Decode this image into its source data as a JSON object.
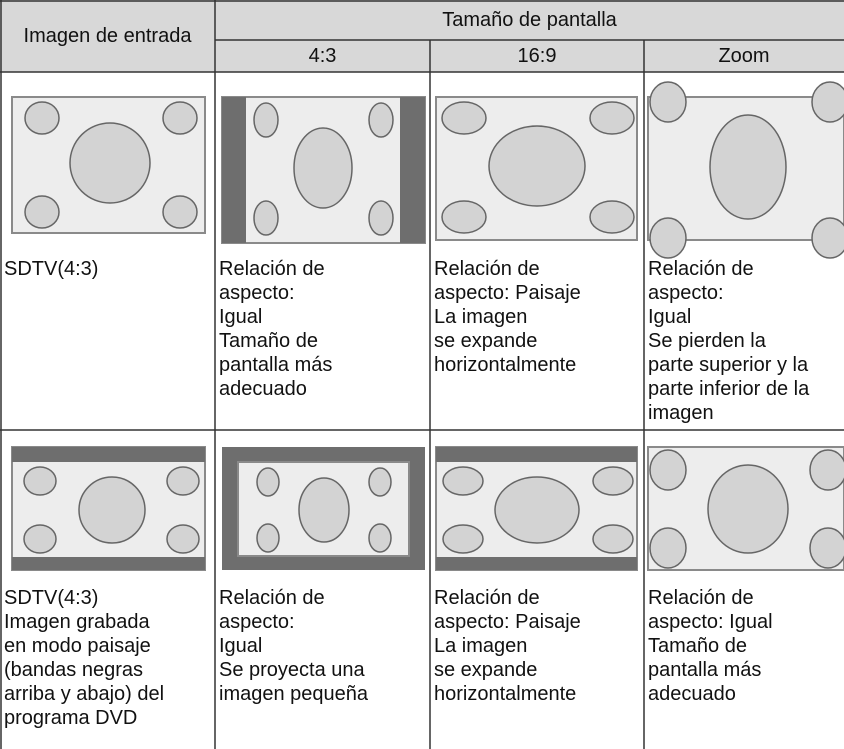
{
  "table": {
    "header": {
      "input": "Imagen de entrada",
      "screen_size": "Tamaño de pantalla",
      "columns": [
        "4:3",
        "16:9",
        "Zoom"
      ]
    },
    "rows": [
      {
        "input": [
          "SDTV(4:3)"
        ],
        "cells": [
          [
            "Relación de",
            "aspecto:",
            "Igual",
            "Tamaño de",
            "pantalla más",
            "adecuado"
          ],
          [
            "Relación de",
            "aspecto: Paisaje",
            "La imagen",
            "se expande",
            "horizontalmente"
          ],
          [
            "Relación de",
            "aspecto:",
            "Igual",
            "Se pierden la",
            "parte superior y la",
            "parte inferior de la",
            "imagen"
          ]
        ]
      },
      {
        "input": [
          "SDTV(4:3)",
          "Imagen grabada",
          "en modo paisaje",
          "(bandas negras",
          "arriba y abajo) del",
          "programa DVD"
        ],
        "cells": [
          [
            "Relación de",
            "aspecto:",
            "Igual",
            "Se proyecta una",
            "imagen pequeña"
          ],
          [
            "Relación de",
            "aspecto: Paisaje",
            "La imagen",
            "se expande",
            "horizontalmente"
          ],
          [
            "Relación de",
            "aspecto: Igual",
            "Tamaño de",
            "pantalla más",
            "adecuado"
          ]
        ]
      }
    ]
  }
}
